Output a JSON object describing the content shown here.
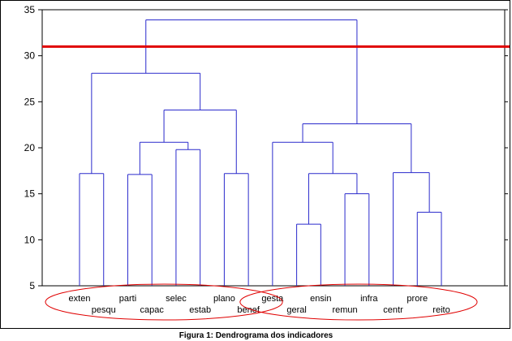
{
  "caption": "Figura 1: Dendrograma dos indicadores",
  "colors": {
    "link": "#2a2acc",
    "cut_line": "#e00000",
    "ellipse": "#e00000",
    "axis": "#000000",
    "text": "#000000"
  },
  "chart_data": {
    "type": "dendrogram",
    "ylim": [
      5,
      35
    ],
    "yticks": [
      5,
      10,
      15,
      20,
      25,
      30,
      35
    ],
    "grid": false,
    "cut_height": 31,
    "leaves": [
      "exten",
      "pesqu",
      "parti",
      "capac",
      "selec",
      "estab",
      "plano",
      "benef",
      "gesta",
      "geral",
      "ensin",
      "remun",
      "infra",
      "centr",
      "prore",
      "reito"
    ],
    "merges": [
      {
        "left": "exten",
        "right": "pesqu",
        "height": 17.2
      },
      {
        "left": "parti",
        "right": "capac",
        "height": 17.1
      },
      {
        "left": "selec",
        "right": "estab",
        "height": 19.8
      },
      {
        "left": "plano",
        "right": "benef",
        "height": 17.2
      },
      {
        "left": "parti+capac",
        "right": "selec+estab",
        "height": 20.6
      },
      {
        "left": "parti..estab",
        "right": "plano+benef",
        "height": 24.1
      },
      {
        "left": "exten+pesqu",
        "right": "parti..benef",
        "height": 28.1
      },
      {
        "left": "geral",
        "right": "ensin",
        "height": 11.7
      },
      {
        "left": "remun",
        "right": "infra",
        "height": 15.0
      },
      {
        "left": "geral+ensin",
        "right": "remun+infra",
        "height": 17.2
      },
      {
        "left": "gesta",
        "right": "geral..infra",
        "height": 20.6
      },
      {
        "left": "prore",
        "right": "reito",
        "height": 13.0
      },
      {
        "left": "centr",
        "right": "prore+reito",
        "height": 17.3
      },
      {
        "left": "gesta..infra",
        "right": "centr..reito",
        "height": 22.6
      },
      {
        "left": "exten..benef",
        "right": "gesta..reito",
        "height": 33.9
      }
    ],
    "groups": [
      [
        "exten",
        "pesqu",
        "parti",
        "capac",
        "selec",
        "estab",
        "plano",
        "benef"
      ],
      [
        "gesta",
        "geral",
        "ensin",
        "remun",
        "infra",
        "centr",
        "prore",
        "reito"
      ]
    ]
  }
}
